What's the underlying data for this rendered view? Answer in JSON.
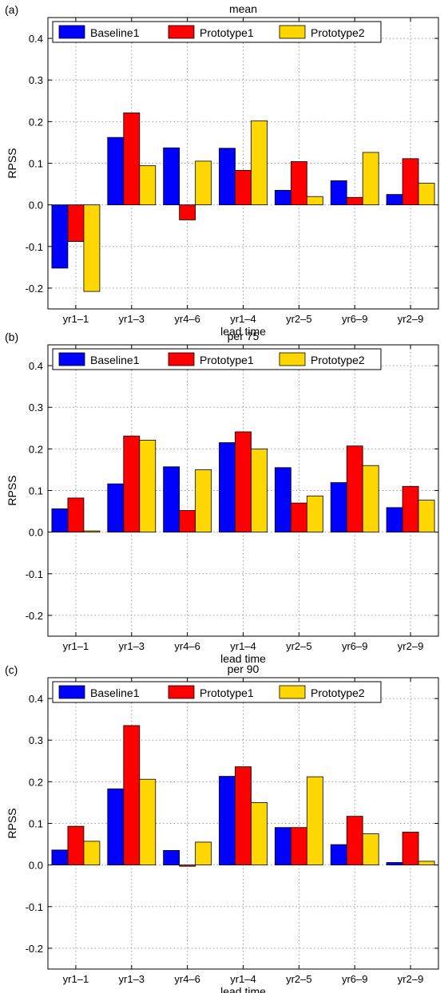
{
  "figure": {
    "xlabel": "lead time",
    "ylabel": "RPSS"
  },
  "legend_labels": [
    "Baseline1",
    "Prototype1",
    "Prototype2"
  ],
  "colors": {
    "Baseline1": "#0000ff",
    "Prototype1": "#ff0000",
    "Prototype2": "#ffd700",
    "grid": "#9a9a9a"
  },
  "chart_data": [
    {
      "type": "bar",
      "panel_label": "(a)",
      "title": "mean",
      "xlabel": "lead time",
      "ylabel": "RPSS",
      "ylim": [
        -0.25,
        0.45
      ],
      "yticks": [
        -0.2,
        -0.1,
        0.0,
        0.1,
        0.2,
        0.3,
        0.4
      ],
      "grid": true,
      "legend_position": "top",
      "categories": [
        "yr1–1",
        "yr1–3",
        "yr4–6",
        "yr1–4",
        "yr2–5",
        "yr6–9",
        "yr2–9"
      ],
      "series": [
        {
          "name": "Baseline1",
          "values": [
            -0.152,
            0.162,
            0.137,
            0.136,
            0.035,
            0.058,
            0.025
          ]
        },
        {
          "name": "Prototype1",
          "values": [
            -0.088,
            0.221,
            -0.036,
            0.083,
            0.104,
            0.018,
            0.111
          ]
        },
        {
          "name": "Prototype2",
          "values": [
            -0.208,
            0.094,
            0.105,
            0.202,
            0.02,
            0.126,
            0.052
          ]
        }
      ]
    },
    {
      "type": "bar",
      "panel_label": "(b)",
      "title": "per 75",
      "xlabel": "lead time",
      "ylabel": "RPSS",
      "ylim": [
        -0.25,
        0.45
      ],
      "yticks": [
        -0.2,
        -0.1,
        0.0,
        0.1,
        0.2,
        0.3,
        0.4
      ],
      "grid": true,
      "legend_position": "top",
      "categories": [
        "yr1–1",
        "yr1–3",
        "yr4–6",
        "yr1–4",
        "yr2–5",
        "yr6–9",
        "yr2–9"
      ],
      "series": [
        {
          "name": "Baseline1",
          "values": [
            0.056,
            0.116,
            0.157,
            0.215,
            0.155,
            0.119,
            0.059
          ]
        },
        {
          "name": "Prototype1",
          "values": [
            0.082,
            0.231,
            0.052,
            0.241,
            0.07,
            0.207,
            0.11
          ]
        },
        {
          "name": "Prototype2",
          "values": [
            0.003,
            0.221,
            0.15,
            0.2,
            0.087,
            0.16,
            0.077
          ]
        }
      ]
    },
    {
      "type": "bar",
      "panel_label": "(c)",
      "title": "per 90",
      "xlabel": "lead time",
      "ylabel": "RPSS",
      "ylim": [
        -0.25,
        0.45
      ],
      "yticks": [
        -0.2,
        -0.1,
        0.0,
        0.1,
        0.2,
        0.3,
        0.4
      ],
      "grid": true,
      "legend_position": "top",
      "categories": [
        "yr1–1",
        "yr1–3",
        "yr4–6",
        "yr1–4",
        "yr2–5",
        "yr6–9",
        "yr2–9"
      ],
      "series": [
        {
          "name": "Baseline1",
          "values": [
            0.036,
            0.183,
            0.035,
            0.213,
            0.09,
            0.049,
            0.006
          ]
        },
        {
          "name": "Prototype1",
          "values": [
            0.093,
            0.335,
            -0.003,
            0.236,
            0.09,
            0.117,
            0.079
          ]
        },
        {
          "name": "Prototype2",
          "values": [
            0.057,
            0.206,
            0.055,
            0.15,
            0.212,
            0.075,
            0.009
          ]
        }
      ]
    }
  ]
}
